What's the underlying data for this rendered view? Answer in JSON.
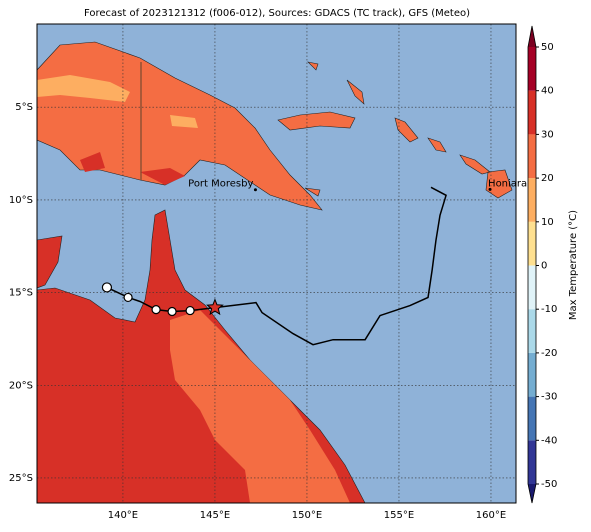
{
  "title": "Forecast of 2023121312 (f006-012), Sources: GDACS (TC track), GFS (Meteo)",
  "map": {
    "xlim": [
      135.33,
      161.36
    ],
    "ylim": [
      -26.35,
      -0.51
    ],
    "xticks": [
      {
        "value": 140,
        "label": "140°E"
      },
      {
        "value": 145,
        "label": "145°E"
      },
      {
        "value": 150,
        "label": "150°E"
      },
      {
        "value": 155,
        "label": "155°E"
      },
      {
        "value": 160,
        "label": "160°E"
      }
    ],
    "yticks": [
      {
        "value": -5,
        "label": "5°S"
      },
      {
        "value": -10,
        "label": "10°S"
      },
      {
        "value": -15,
        "label": "15°S"
      },
      {
        "value": -20,
        "label": "20°S"
      },
      {
        "value": -25,
        "label": "25°S"
      }
    ],
    "places": [
      {
        "name": "Port Moresby",
        "lon": 147.2,
        "lat": -9.45
      },
      {
        "name": "Honiara",
        "lon": 159.95,
        "lat": -9.43
      }
    ],
    "track": {
      "lon": [
        156.74,
        157.56,
        157.23,
        157.01,
        156.8,
        156.58,
        155.6,
        153.97,
        153.16,
        151.42,
        150.33,
        149.24,
        147.56,
        147.23,
        145.0,
        143.65,
        142.67,
        141.8,
        140.93,
        140.28,
        139.13
      ],
      "lat": [
        -9.32,
        -9.75,
        -10.83,
        -12.18,
        -13.8,
        -15.26,
        -15.7,
        -16.24,
        -17.54,
        -17.54,
        -17.81,
        -17.21,
        -16.08,
        -15.54,
        -15.81,
        -15.97,
        -16.02,
        -15.92,
        -15.48,
        -15.26,
        -14.72
      ]
    }
  },
  "colorbar": {
    "label": "Max Temperature (°C)",
    "lim": [
      -50,
      50
    ],
    "ticks": [
      -50,
      -40,
      -30,
      -20,
      -10,
      0,
      10,
      20,
      30,
      40,
      50
    ],
    "colors": [
      "#313695",
      "#4575b4",
      "#74add1",
      "#abd9e9",
      "#e0f3f8",
      "#fee090",
      "#fdae61",
      "#f46d43",
      "#d73027",
      "#a50026"
    ],
    "under": "#1a1a6e",
    "over": "#7a0020"
  }
}
